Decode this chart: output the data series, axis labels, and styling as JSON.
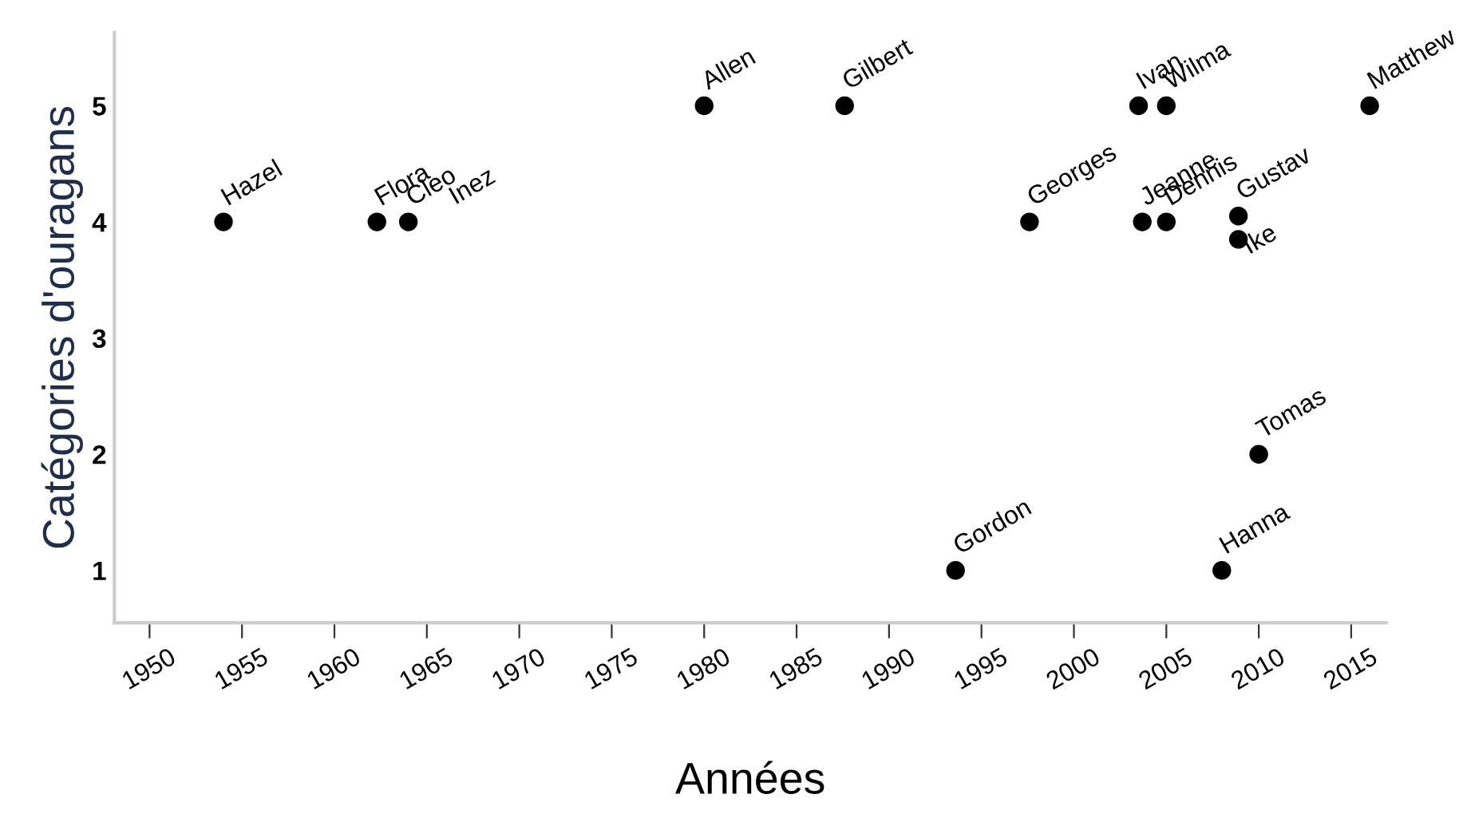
{
  "chart_data": {
    "type": "scatter",
    "xlabel": "Années",
    "ylabel": "Catégories d'ouragans",
    "x": [
      1954,
      1962.3,
      1964,
      1980,
      1987.6,
      1993.6,
      1997.6,
      2003.5,
      2005,
      2003.7,
      2005,
      2008.9,
      2008.9,
      2008,
      2010,
      2016
    ],
    "series": [
      {
        "color": "#000000",
        "values": [
          4,
          4,
          4,
          5,
          5,
          1,
          4,
          5,
          5,
          4,
          4,
          4.05,
          3.85,
          1,
          2,
          5
        ],
        "value_labels": [
          "Hazel",
          "Flora",
          "Cleo",
          "Allen",
          "Gilbert",
          "Gordon",
          "Georges",
          "Ivan",
          "Wilma",
          "Jeanne",
          "Dennis",
          "Gustav",
          "Ike",
          "Hanna",
          "Tomas",
          "Matthew"
        ]
      }
    ],
    "annotations": [
      "Inez"
    ],
    "xlim": [
      1948.1,
      2016.9
    ],
    "xticks": [
      1950,
      1955,
      1960,
      1965,
      1970,
      1975,
      1980,
      1985,
      1990,
      1995,
      2000,
      2005,
      2010,
      2015
    ],
    "ylim": [
      0.55,
      5.63
    ],
    "yticks": [
      1,
      2,
      3,
      4,
      5
    ],
    "grid": false,
    "legend": false
  }
}
